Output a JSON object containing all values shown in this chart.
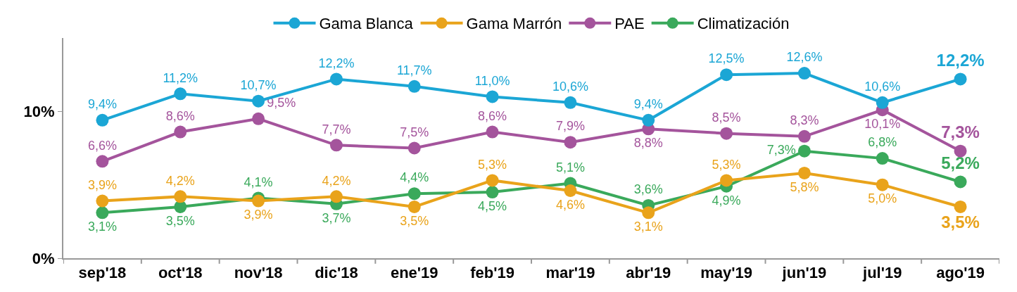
{
  "chart_data": {
    "type": "line",
    "categories": [
      "sep'18",
      "oct'18",
      "nov'18",
      "dic'18",
      "ene'19",
      "feb'19",
      "mar'19",
      "abr'19",
      "may'19",
      "jun'19",
      "jul'19",
      "ago'19"
    ],
    "series": [
      {
        "name": "Gama Blanca",
        "color": "#1ba6d5",
        "values": [
          9.4,
          11.2,
          10.7,
          12.2,
          11.7,
          11.0,
          10.6,
          9.4,
          12.5,
          12.6,
          10.6,
          12.2
        ],
        "value_labels": [
          "9,4%",
          "11,2%",
          "10,7%",
          "12,2%",
          "11,7%",
          "11,0%",
          "10,6%",
          "9,4%",
          "12,5%",
          "12,6%",
          "10,6%",
          "12,2%"
        ]
      },
      {
        "name": "Gama Marrón",
        "color": "#e9a31b",
        "values": [
          3.9,
          4.2,
          3.9,
          4.2,
          3.5,
          5.3,
          4.6,
          3.1,
          5.3,
          5.8,
          5.0,
          3.5
        ],
        "value_labels": [
          "3,9%",
          "4,2%",
          "3,9%",
          "4,2%",
          "3,5%",
          "5,3%",
          "4,6%",
          "3,1%",
          "5,3%",
          "5,8%",
          "5,0%",
          "3,5%"
        ]
      },
      {
        "name": "PAE",
        "color": "#a4549c",
        "values": [
          6.6,
          8.6,
          9.5,
          7.7,
          7.5,
          8.6,
          7.9,
          8.8,
          8.5,
          8.3,
          10.1,
          7.3
        ],
        "value_labels": [
          "6,6%",
          "8,6%",
          "9,5%",
          "7,7%",
          "7,5%",
          "8,6%",
          "7,9%",
          "8,8%",
          "8,5%",
          "8,3%",
          "10,1%",
          "7,3%"
        ]
      },
      {
        "name": "Climatización",
        "color": "#3aa95b",
        "values": [
          3.1,
          3.5,
          4.1,
          3.7,
          4.4,
          4.5,
          5.1,
          3.6,
          4.9,
          7.3,
          6.8,
          5.2
        ],
        "value_labels": [
          "3,1%",
          "3,5%",
          "4,1%",
          "3,7%",
          "4,4%",
          "4,5%",
          "5,1%",
          "3,6%",
          "4,9%",
          "7,3%",
          "6,8%",
          "5,2%"
        ]
      }
    ],
    "ylim": [
      0,
      15
    ],
    "yticks": [
      {
        "value": 0,
        "label": "0%"
      },
      {
        "value": 10,
        "label": "10%"
      }
    ],
    "legend": "top",
    "marker": "circle",
    "line_style": "solid"
  }
}
